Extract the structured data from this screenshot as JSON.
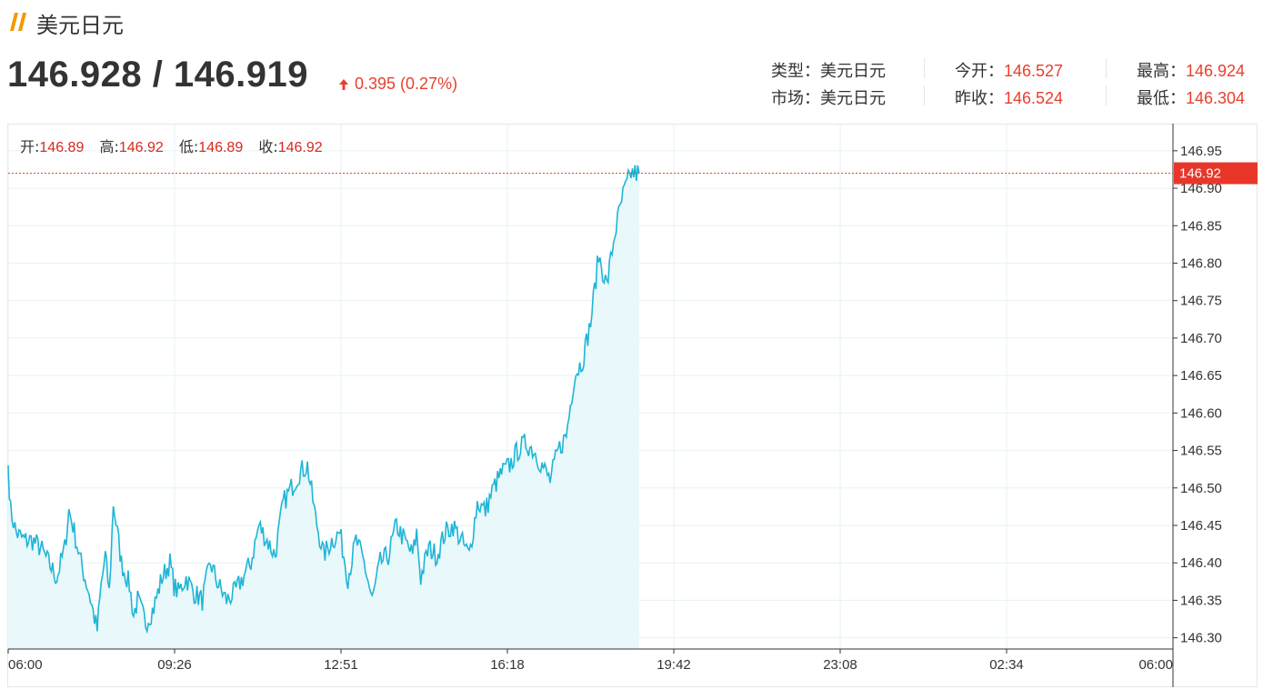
{
  "header": {
    "title": "美元日元",
    "price": "146.928 / 146.919",
    "change": "0.395 (0.27%)",
    "accent_color": "#f39800",
    "up_color": "#e83f2d"
  },
  "info": [
    {
      "label": "类型：",
      "value": "美元日元",
      "red": false
    },
    {
      "label": "今开：",
      "value": "146.527",
      "red": true
    },
    {
      "label": "最高：",
      "value": "146.924",
      "red": true
    },
    {
      "label": "市场：",
      "value": "美元日元",
      "red": false
    },
    {
      "label": "昨收：",
      "value": "146.524",
      "red": true
    },
    {
      "label": "最低：",
      "value": "146.304",
      "red": true
    }
  ],
  "ohlc": {
    "open_label": "开:",
    "open": "146.89",
    "high_label": "高:",
    "high": "146.92",
    "low_label": "低:",
    "low": "146.89",
    "close_label": "收:",
    "close": "146.92"
  },
  "chart_data": {
    "type": "area",
    "ylim": [
      146.285,
      146.985
    ],
    "y_ticks": [
      "146.95",
      "146.90",
      "146.85",
      "146.80",
      "146.75",
      "146.70",
      "146.65",
      "146.60",
      "146.55",
      "146.50",
      "146.45",
      "146.40",
      "146.35",
      "146.30"
    ],
    "x_ticks": [
      "06:00",
      "09:26",
      "12:51",
      "16:18",
      "19:42",
      "23:08",
      "02:34",
      "06:00"
    ],
    "current_price_label": "146.92",
    "current_price": 146.92,
    "line_color": "#1fb5d6",
    "fill_color": "#e9f8fb",
    "price_line_color": "#e8372a",
    "x_minutes_from_start": [
      0,
      3,
      10,
      20,
      30,
      40,
      50,
      60,
      70,
      75,
      80,
      90,
      100,
      110,
      115,
      120,
      125,
      130,
      140,
      150,
      155,
      160,
      170,
      180,
      190,
      200,
      205,
      210,
      220,
      230,
      240,
      250,
      260,
      270,
      280,
      290,
      300,
      310,
      320,
      330,
      340,
      350,
      355,
      360,
      370,
      380,
      390,
      400,
      410,
      420,
      430,
      440,
      450,
      460,
      470,
      480,
      490,
      500,
      505,
      510,
      520,
      530,
      540,
      550,
      560,
      570,
      580,
      590,
      600,
      610,
      620,
      630,
      640,
      650,
      660,
      670,
      680,
      690,
      700,
      710,
      720,
      730,
      740,
      750,
      760,
      770,
      775,
      780
    ],
    "values": [
      146.53,
      146.47,
      146.44,
      146.43,
      146.43,
      146.42,
      146.4,
      146.38,
      146.42,
      146.47,
      146.45,
      146.4,
      146.36,
      146.31,
      146.37,
      146.41,
      146.36,
      146.48,
      146.4,
      146.37,
      146.33,
      146.35,
      146.32,
      146.34,
      146.38,
      146.4,
      146.37,
      146.36,
      146.38,
      146.36,
      146.35,
      146.4,
      146.37,
      146.35,
      146.36,
      146.38,
      146.4,
      146.45,
      146.43,
      146.41,
      146.48,
      146.5,
      146.51,
      146.52,
      146.53,
      146.46,
      146.41,
      146.43,
      146.44,
      146.38,
      146.43,
      146.4,
      146.35,
      146.4,
      146.41,
      146.45,
      146.43,
      146.41,
      146.44,
      146.38,
      146.42,
      146.41,
      146.44,
      146.45,
      146.43,
      146.41,
      146.48,
      146.47,
      146.5,
      146.52,
      146.53,
      146.55,
      146.56,
      146.55,
      146.53,
      146.51,
      146.55,
      146.57,
      146.65,
      146.67,
      146.72,
      146.81,
      146.77,
      146.84,
      146.89,
      146.92,
      146.92,
      146.92
    ]
  }
}
